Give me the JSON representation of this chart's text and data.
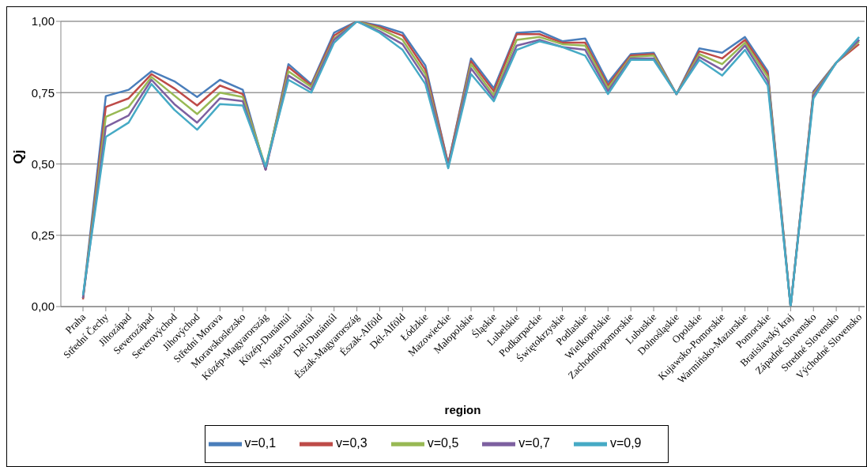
{
  "chart_data": {
    "type": "line",
    "xlabel": "region",
    "ylabel": "Qj",
    "categories": [
      "Praha",
      "Střední Čechy",
      "Jihozápad",
      "Severozápad",
      "Severovýchod",
      "Jihovýchod",
      "Střední Morava",
      "Moravskoslezsko",
      "Közép-Magyarország",
      "Közép-Dunántúl",
      "Nyugat-Dunántúl",
      "Dél-Dunántúl",
      "Észak-Magyarország",
      "Észak-Alföld",
      "Dél-Alföld",
      "Łódzkie",
      "Mazowieckie",
      "Małopolskie",
      "Śląskie",
      "Lubelskie",
      "Podkarpackie",
      "Świętokrzyskie",
      "Podlaskie",
      "Wielkopolskie",
      "Zachodniopomorskie",
      "Lubuskie",
      "Dolnośląskie",
      "Opolskie",
      "Kujawsko-Pomorskie",
      "Warmińsko-Mazurskie",
      "Pomorskie",
      "Bratislavský kraj",
      "Západné Slovensko",
      "Stredné Slovensko",
      "Východné Slovensko"
    ],
    "series": [
      {
        "name": "v=0,1",
        "color": "#4a7ebb",
        "values": [
          0.03,
          0.738,
          0.76,
          0.825,
          0.79,
          0.735,
          0.795,
          0.76,
          0.48,
          0.85,
          0.78,
          0.96,
          1.0,
          0.985,
          0.96,
          0.845,
          0.5,
          0.87,
          0.765,
          0.96,
          0.965,
          0.93,
          0.94,
          0.785,
          0.885,
          0.89,
          0.745,
          0.905,
          0.89,
          0.945,
          0.825,
          0.0,
          0.755,
          0.855,
          0.935
        ]
      },
      {
        "name": "v=0,3",
        "color": "#be4b48",
        "values": [
          0.025,
          0.7,
          0.73,
          0.815,
          0.765,
          0.705,
          0.775,
          0.745,
          0.48,
          0.84,
          0.775,
          0.95,
          1.0,
          0.98,
          0.95,
          0.83,
          0.5,
          0.86,
          0.755,
          0.955,
          0.955,
          0.925,
          0.925,
          0.775,
          0.88,
          0.885,
          0.745,
          0.895,
          0.87,
          0.935,
          0.815,
          0.0,
          0.75,
          0.855,
          0.92
        ]
      },
      {
        "name": "v=0,5",
        "color": "#98b954",
        "values": [
          0.03,
          0.665,
          0.7,
          0.805,
          0.74,
          0.675,
          0.75,
          0.735,
          0.49,
          0.825,
          0.77,
          0.94,
          1.0,
          0.975,
          0.935,
          0.815,
          0.49,
          0.85,
          0.74,
          0.935,
          0.945,
          0.92,
          0.915,
          0.765,
          0.875,
          0.88,
          0.745,
          0.885,
          0.85,
          0.925,
          0.805,
          0.0,
          0.745,
          0.855,
          0.93
        ]
      },
      {
        "name": "v=0,7",
        "color": "#7d60a0",
        "values": [
          0.03,
          0.63,
          0.67,
          0.795,
          0.71,
          0.645,
          0.73,
          0.72,
          0.48,
          0.81,
          0.76,
          0.935,
          1.0,
          0.965,
          0.92,
          0.8,
          0.49,
          0.835,
          0.73,
          0.915,
          0.935,
          0.91,
          0.9,
          0.755,
          0.87,
          0.87,
          0.745,
          0.875,
          0.83,
          0.915,
          0.79,
          0.0,
          0.74,
          0.855,
          0.935
        ]
      },
      {
        "name": "v=0,9",
        "color": "#46aac5",
        "values": [
          0.04,
          0.595,
          0.645,
          0.78,
          0.69,
          0.62,
          0.71,
          0.705,
          0.49,
          0.795,
          0.75,
          0.925,
          1.0,
          0.96,
          0.9,
          0.78,
          0.485,
          0.815,
          0.72,
          0.9,
          0.93,
          0.91,
          0.88,
          0.745,
          0.865,
          0.865,
          0.745,
          0.865,
          0.81,
          0.9,
          0.775,
          0.0,
          0.73,
          0.855,
          0.945
        ]
      }
    ],
    "ylim": [
      0,
      1
    ],
    "yticks": [
      {
        "value": 0,
        "label": "0,00"
      },
      {
        "value": 0.25,
        "label": "0,25"
      },
      {
        "value": 0.5,
        "label": "0,50"
      },
      {
        "value": 0.75,
        "label": "0,75"
      },
      {
        "value": 1,
        "label": "1,00"
      }
    ],
    "grid": "y",
    "legend": "bottom",
    "marker": "none",
    "line_style": "solid"
  }
}
